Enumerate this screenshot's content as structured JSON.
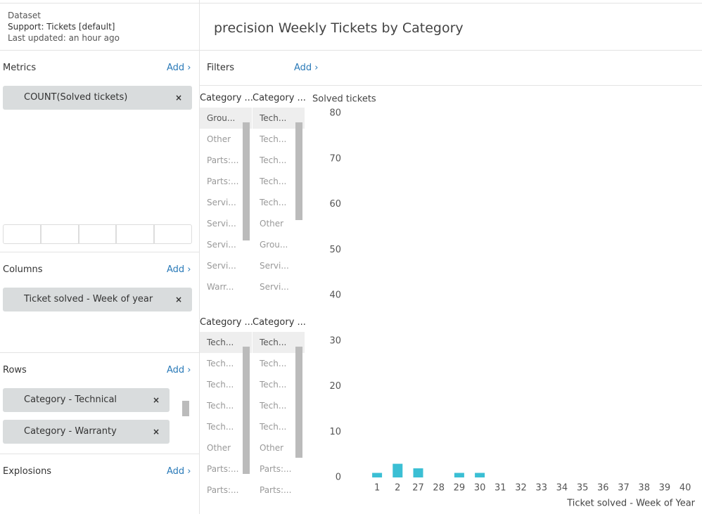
{
  "dataset": {
    "label": "Dataset",
    "name": "Support: Tickets [default]",
    "updated": "Last updated: an hour ago"
  },
  "title": "precision Weekly Tickets by Category",
  "metrics": {
    "label": "Metrics",
    "add": "Add",
    "items": [
      "COUNT(Solved tickets)"
    ]
  },
  "columns": {
    "label": "Columns",
    "add": "Add",
    "items": [
      "Ticket solved - Week of year"
    ]
  },
  "rows": {
    "label": "Rows",
    "add": "Add",
    "items": [
      "Category - Technical",
      "Category - Warranty"
    ]
  },
  "explosions": {
    "label": "Explosions",
    "add": "Add"
  },
  "filters": {
    "label": "Filters",
    "add": "Add"
  },
  "row_lists": [
    {
      "header": "Category ...",
      "items": [
        "Grou...",
        "Other",
        "Parts:...",
        "Parts:...",
        "Servi...",
        "Servi...",
        "Servi...",
        "Servi...",
        "Warr..."
      ]
    },
    {
      "header": "Category ...",
      "items": [
        "Tech...",
        "Tech...",
        "Tech...",
        "Tech...",
        "Tech...",
        "Other",
        "Grou...",
        "Servi...",
        "Servi..."
      ]
    },
    {
      "header": "Category ...",
      "items": [
        "Tech...",
        "Tech...",
        "Tech...",
        "Tech...",
        "Tech...",
        "Other",
        "Parts:...",
        "Parts:..."
      ]
    },
    {
      "header": "Category ...",
      "items": [
        "Tech...",
        "Tech...",
        "Tech...",
        "Tech...",
        "Tech...",
        "Other",
        "Parts:...",
        "Parts:..."
      ]
    }
  ],
  "chart_data": {
    "type": "bar",
    "y_label": "Solved tickets",
    "x_label": "Ticket solved - Week of Year",
    "categories": [
      "1",
      "2",
      "27",
      "28",
      "29",
      "30",
      "31",
      "32",
      "33",
      "34",
      "35",
      "36",
      "37",
      "38",
      "39",
      "40"
    ],
    "values": [
      1,
      3,
      2,
      null,
      1,
      1,
      null,
      null,
      null,
      null,
      null,
      null,
      null,
      null,
      null,
      null
    ],
    "color": "#3bbfd4",
    "ylim": [
      0,
      80
    ],
    "yticks": [
      0,
      10,
      20,
      30,
      40,
      50,
      60,
      70,
      80
    ],
    "grid": false
  }
}
